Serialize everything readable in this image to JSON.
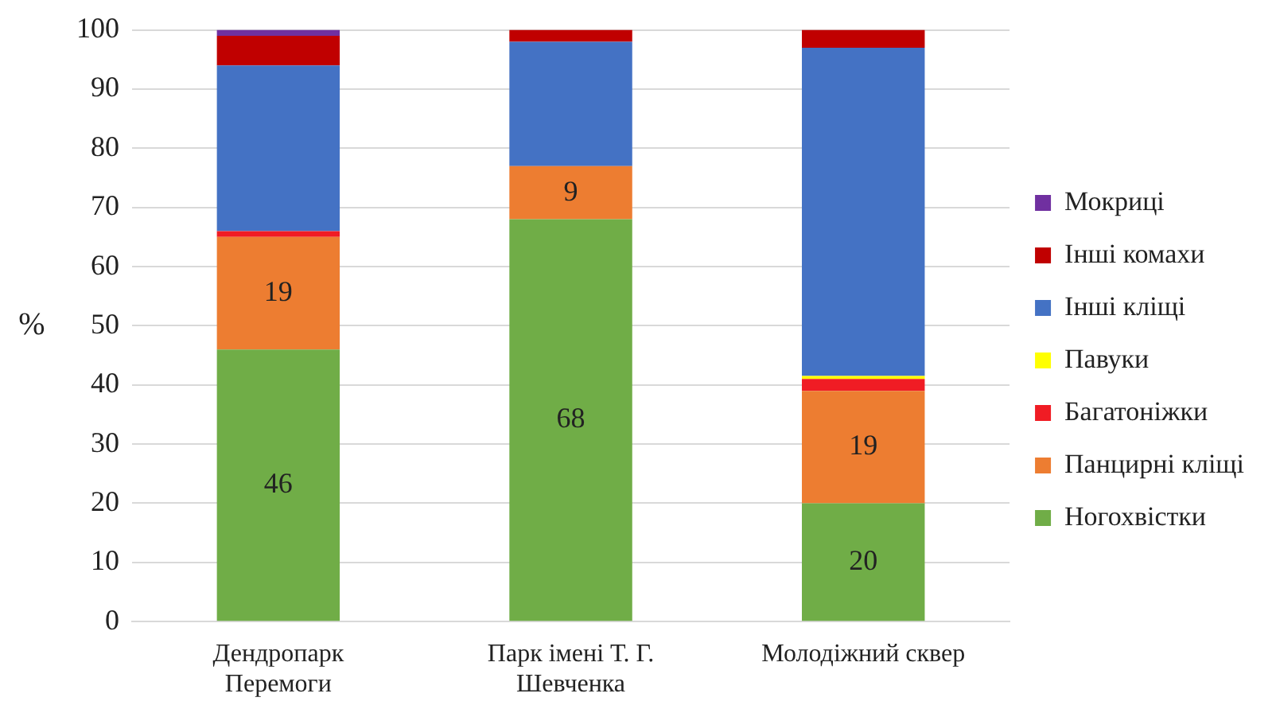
{
  "chart_data": {
    "type": "bar",
    "stacked": true,
    "ylabel": "%",
    "categories": [
      "Дендропарк Перемоги",
      "Парк імені Т. Г. Шевченка",
      "Молодіжний сквер"
    ],
    "ylim": [
      0,
      100
    ],
    "yticks": [
      0,
      10,
      20,
      30,
      40,
      50,
      60,
      70,
      80,
      90,
      100
    ],
    "grid": "y",
    "legend": "right",
    "series": [
      {
        "name": "Ногохвістки",
        "color": "#70ad47",
        "values": [
          46,
          68,
          20
        ],
        "value_labels": [
          "46",
          "68",
          "20"
        ]
      },
      {
        "name": "Панцирні кліщі",
        "color": "#ed7d31",
        "values": [
          19,
          9,
          19
        ],
        "value_labels": [
          "19",
          "9",
          "19"
        ]
      },
      {
        "name": "Багатоніжки",
        "color": "#f01c24",
        "values": [
          1,
          0,
          2
        ]
      },
      {
        "name": "Павуки",
        "color": "#ffff00",
        "values": [
          0,
          0,
          0.5
        ]
      },
      {
        "name": "Інші кліщі",
        "color": "#4472c4",
        "values": [
          28,
          21,
          55.5
        ]
      },
      {
        "name": "Інші комахи",
        "color": "#c00000",
        "values": [
          5,
          2,
          3
        ]
      },
      {
        "name": "Мокриці",
        "color": "#7030a0",
        "values": [
          1,
          0,
          0
        ]
      }
    ]
  }
}
